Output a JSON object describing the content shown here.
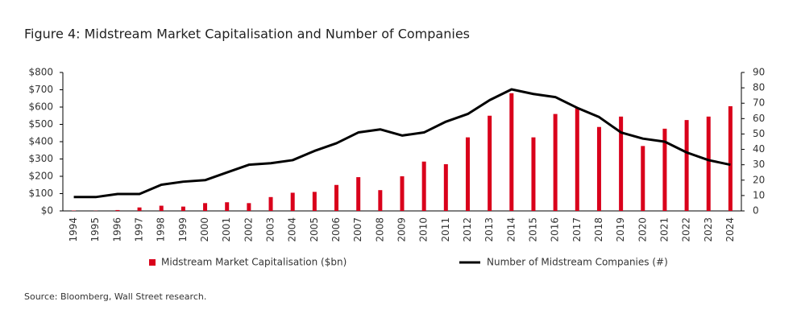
{
  "chart_data": {
    "type": "bar-line",
    "title": "Figure 4: Midstream Market Capitalisation and Number of Companies",
    "source": "Source: Bloomberg, Wall Street research.",
    "categories": [
      "1994",
      "1995",
      "1996",
      "1997",
      "1998",
      "1999",
      "2000",
      "2001",
      "2002",
      "2003",
      "2004",
      "2005",
      "2006",
      "2007",
      "2008",
      "2009",
      "2010",
      "2011",
      "2012",
      "2013",
      "2014",
      "2015",
      "2016",
      "2017",
      "2018",
      "2019",
      "2020",
      "2021",
      "2022",
      "2023",
      "2024"
    ],
    "series": [
      {
        "name": "Midstream Market Capitalisation ($bn)",
        "type": "bar",
        "color": "#d9001b",
        "values": [
          2,
          1,
          5,
          20,
          30,
          25,
          45,
          50,
          45,
          80,
          105,
          110,
          150,
          195,
          120,
          200,
          285,
          270,
          425,
          550,
          680,
          425,
          560,
          595,
          485,
          545,
          375,
          475,
          525,
          545,
          605
        ]
      },
      {
        "name": "Number of Midstream Companies (#)",
        "type": "line",
        "color": "#000000",
        "axis": "y2",
        "values": [
          9,
          9,
          11,
          11,
          17,
          19,
          20,
          25,
          30,
          31,
          33,
          39,
          44,
          51,
          53,
          49,
          51,
          58,
          63,
          72,
          79,
          76,
          74,
          67,
          61,
          51,
          47,
          45,
          38,
          33,
          30
        ]
      }
    ],
    "ylim": [
      0,
      800
    ],
    "yticks": [
      {
        "value": 0,
        "label": "$0"
      },
      {
        "value": 100,
        "label": "$100"
      },
      {
        "value": 200,
        "label": "$200"
      },
      {
        "value": 300,
        "label": "$300"
      },
      {
        "value": 400,
        "label": "$400"
      },
      {
        "value": 500,
        "label": "$500"
      },
      {
        "value": 600,
        "label": "$600"
      },
      {
        "value": 700,
        "label": "$700"
      },
      {
        "value": 800,
        "label": "$800"
      }
    ],
    "y2lim": [
      0,
      90
    ],
    "y2ticks": [
      0,
      10,
      20,
      30,
      40,
      50,
      60,
      70,
      80,
      90
    ],
    "legend": "bottom"
  }
}
